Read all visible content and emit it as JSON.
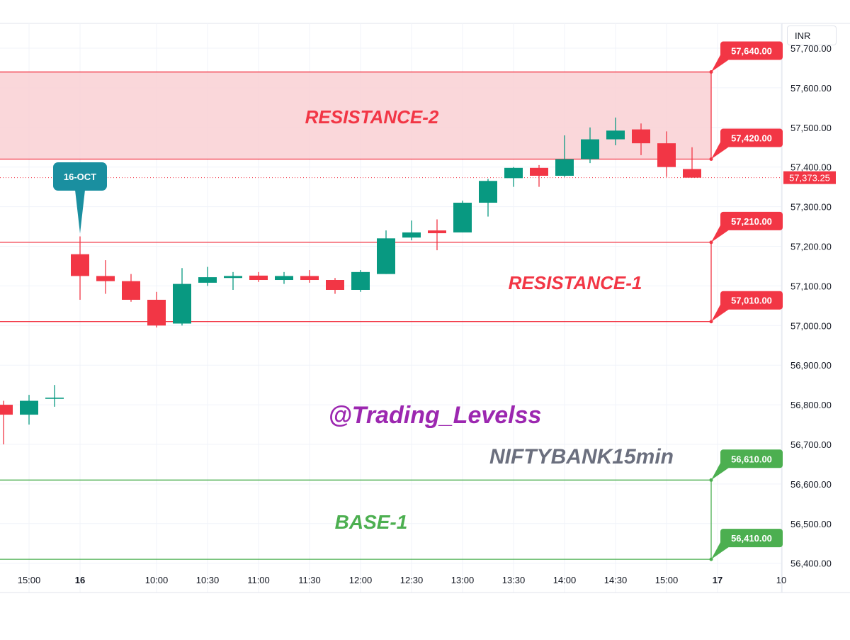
{
  "currency": "INR",
  "colors": {
    "up": "#089981",
    "down": "#f23645",
    "resistance": "#f23645",
    "resistance_fill": "#f9d0d4",
    "base": "#4caf50",
    "callout": "#1a8fa0",
    "watermark1": "#9c27b0",
    "watermark2": "#6b6f7e",
    "grid": "#f0f3fa"
  },
  "texts": {
    "watermark_handle": "@Trading_Levelss",
    "watermark_symbol": "NIFTYBANK15min",
    "date_callout": "16-OCT"
  },
  "chart_data": {
    "type": "candlestick",
    "ylim": [
      56370,
      57760
    ],
    "y_ticks": [
      "57,700.00",
      "57,600.00",
      "57,500.00",
      "57,400.00",
      "57,300.00",
      "57,200.00",
      "57,100.00",
      "57,000.00",
      "56,900.00",
      "56,800.00",
      "56,700.00",
      "56,600.00",
      "56,500.00",
      "56,400.00"
    ],
    "y_tick_values": [
      57700,
      57600,
      57500,
      57400,
      57300,
      57200,
      57100,
      57000,
      56900,
      56800,
      56700,
      56600,
      56500,
      56400
    ],
    "x_ticks": [
      {
        "label": "15:00",
        "slot": 1,
        "bold": false
      },
      {
        "label": "16",
        "slot": 3,
        "bold": true
      },
      {
        "label": "10:00",
        "slot": 6,
        "bold": false
      },
      {
        "label": "10:30",
        "slot": 8,
        "bold": false
      },
      {
        "label": "11:00",
        "slot": 10,
        "bold": false
      },
      {
        "label": "11:30",
        "slot": 12,
        "bold": false
      },
      {
        "label": "12:00",
        "slot": 14,
        "bold": false
      },
      {
        "label": "12:30",
        "slot": 16,
        "bold": false
      },
      {
        "label": "13:00",
        "slot": 18,
        "bold": false
      },
      {
        "label": "13:30",
        "slot": 20,
        "bold": false
      },
      {
        "label": "14:00",
        "slot": 22,
        "bold": false
      },
      {
        "label": "14:30",
        "slot": 24,
        "bold": false
      },
      {
        "label": "15:00",
        "slot": 26,
        "bold": false
      },
      {
        "label": "17",
        "slot": 28,
        "bold": true
      },
      {
        "label": "10",
        "slot": 30.5,
        "bold": false
      }
    ],
    "candles": [
      {
        "slot": 0,
        "o": 56800,
        "h": 56810,
        "l": 56700,
        "c": 56775
      },
      {
        "slot": 1,
        "o": 56775,
        "h": 56825,
        "l": 56750,
        "c": 56810
      },
      {
        "slot": 2,
        "o": 56815,
        "h": 56850,
        "l": 56795,
        "c": 56818
      },
      {
        "slot": 3,
        "o": 57180,
        "h": 57225,
        "l": 57065,
        "c": 57125
      },
      {
        "slot": 4,
        "o": 57125,
        "h": 57165,
        "l": 57080,
        "c": 57112
      },
      {
        "slot": 5,
        "o": 57112,
        "h": 57130,
        "l": 57060,
        "c": 57065
      },
      {
        "slot": 6,
        "o": 57065,
        "h": 57085,
        "l": 56995,
        "c": 57000
      },
      {
        "slot": 7,
        "o": 57005,
        "h": 57145,
        "l": 57000,
        "c": 57105
      },
      {
        "slot": 8,
        "o": 57108,
        "h": 57148,
        "l": 57100,
        "c": 57122
      },
      {
        "slot": 9,
        "o": 57120,
        "h": 57135,
        "l": 57090,
        "c": 57125
      },
      {
        "slot": 10,
        "o": 57126,
        "h": 57135,
        "l": 57110,
        "c": 57115
      },
      {
        "slot": 11,
        "o": 57115,
        "h": 57135,
        "l": 57105,
        "c": 57125
      },
      {
        "slot": 12,
        "o": 57125,
        "h": 57140,
        "l": 57108,
        "c": 57115
      },
      {
        "slot": 13,
        "o": 57115,
        "h": 57120,
        "l": 57080,
        "c": 57090
      },
      {
        "slot": 14,
        "o": 57090,
        "h": 57140,
        "l": 57085,
        "c": 57135
      },
      {
        "slot": 15,
        "o": 57130,
        "h": 57240,
        "l": 57130,
        "c": 57220
      },
      {
        "slot": 16,
        "o": 57222,
        "h": 57265,
        "l": 57215,
        "c": 57235
      },
      {
        "slot": 17,
        "o": 57240,
        "h": 57268,
        "l": 57190,
        "c": 57233
      },
      {
        "slot": 18,
        "o": 57235,
        "h": 57315,
        "l": 57235,
        "c": 57310
      },
      {
        "slot": 19,
        "o": 57310,
        "h": 57370,
        "l": 57275,
        "c": 57365
      },
      {
        "slot": 20,
        "o": 57372,
        "h": 57400,
        "l": 57350,
        "c": 57398
      },
      {
        "slot": 21,
        "o": 57398,
        "h": 57405,
        "l": 57350,
        "c": 57378
      },
      {
        "slot": 22,
        "o": 57378,
        "h": 57480,
        "l": 57375,
        "c": 57420
      },
      {
        "slot": 23,
        "o": 57420,
        "h": 57500,
        "l": 57410,
        "c": 57470
      },
      {
        "slot": 24,
        "o": 57470,
        "h": 57525,
        "l": 57455,
        "c": 57492
      },
      {
        "slot": 25,
        "o": 57495,
        "h": 57510,
        "l": 57430,
        "c": 57460
      },
      {
        "slot": 26,
        "o": 57460,
        "h": 57490,
        "l": 57375,
        "c": 57400
      },
      {
        "slot": 27,
        "o": 57395,
        "h": 57450,
        "l": 57373.25,
        "c": 57373.25
      }
    ],
    "last_price": {
      "value": 57373.25,
      "label": "57,373.25"
    },
    "levels": [
      {
        "value": 57640,
        "label": "57,640.00",
        "kind": "resistance"
      },
      {
        "value": 57420,
        "label": "57,420.00",
        "kind": "resistance"
      },
      {
        "value": 57210,
        "label": "57,210.00",
        "kind": "resistance"
      },
      {
        "value": 57010,
        "label": "57,010.00",
        "kind": "resistance"
      },
      {
        "value": 56610,
        "label": "56,610.00",
        "kind": "base"
      },
      {
        "value": 56410,
        "label": "56,410.00",
        "kind": "base"
      }
    ],
    "zones": [
      {
        "label": "RESISTANCE-2",
        "top": 57640,
        "bottom": 57420,
        "kind": "resistance",
        "filled": true
      },
      {
        "label": "RESISTANCE-1",
        "top": 57210,
        "bottom": 57010,
        "kind": "resistance",
        "filled": false
      },
      {
        "label": "BASE-1",
        "top": 56610,
        "bottom": 56410,
        "kind": "base",
        "filled": false
      }
    ],
    "callout": {
      "label": "16-OCT",
      "slot": 3,
      "value": 57225
    }
  }
}
